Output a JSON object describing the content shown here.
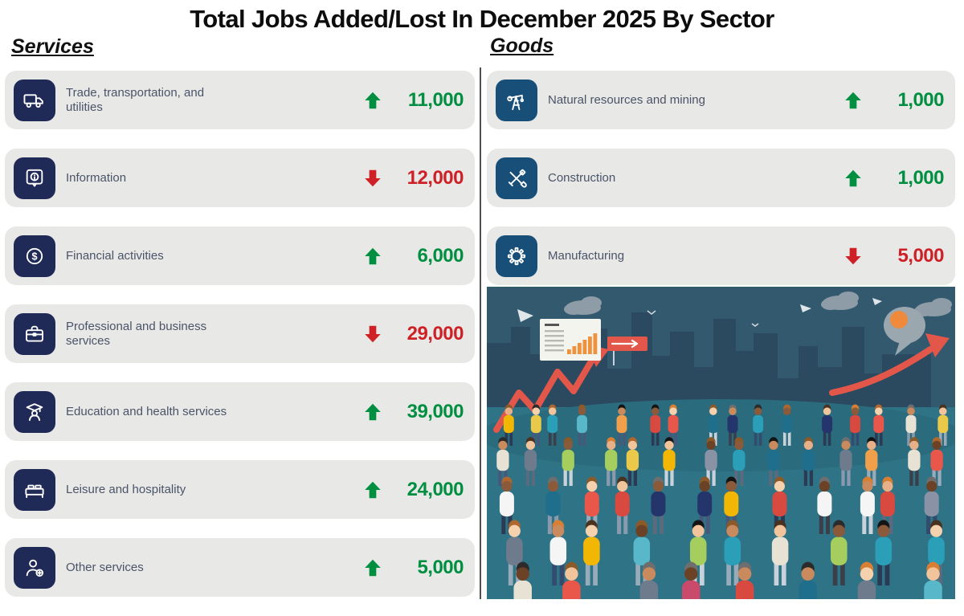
{
  "title": "Total Jobs Added/Lost In December 2025 By Sector",
  "colors": {
    "up": "#008e40",
    "down": "#cd2127",
    "row_bg": "#e8e8e6",
    "services_tile": "#202a57",
    "goods_tile": "#174f79",
    "label_text": "#4a5468"
  },
  "services": {
    "heading": "Services",
    "items": [
      {
        "label": "Trade, transportation, and utilities",
        "icon": "truck-icon",
        "direction": "up",
        "value": "11,000"
      },
      {
        "label": "Information",
        "icon": "info-bubble-icon",
        "direction": "down",
        "value": "12,000"
      },
      {
        "label": "Financial activities",
        "icon": "dollar-circle-icon",
        "direction": "up",
        "value": "6,000"
      },
      {
        "label": "Professional and business services",
        "icon": "briefcase-icon",
        "direction": "down",
        "value": "29,000"
      },
      {
        "label": "Education and health services",
        "icon": "graduate-icon",
        "direction": "up",
        "value": "39,000"
      },
      {
        "label": "Leisure and hospitality",
        "icon": "bed-icon",
        "direction": "up",
        "value": "24,000"
      },
      {
        "label": "Other services",
        "icon": "person-plus-icon",
        "direction": "up",
        "value": "5,000"
      }
    ]
  },
  "goods": {
    "heading": "Goods",
    "items": [
      {
        "label": "Natural resources and mining",
        "icon": "oil-derrick-icon",
        "direction": "up",
        "value": "1,000"
      },
      {
        "label": "Construction",
        "icon": "crossed-tools-icon",
        "direction": "up",
        "value": "1,000"
      },
      {
        "label": "Manufacturing",
        "icon": "gear-icon",
        "direction": "down",
        "value": "5,000"
      }
    ]
  },
  "chart_data": {
    "type": "table",
    "title": "Total Jobs Added/Lost In December 2025 By Sector",
    "groups": [
      {
        "name": "Services",
        "categories": [
          "Trade, transportation, and utilities",
          "Information",
          "Financial activities",
          "Professional and business services",
          "Education and health services",
          "Leisure and hospitality",
          "Other services"
        ],
        "values": [
          11000,
          -12000,
          6000,
          -29000,
          39000,
          24000,
          5000
        ]
      },
      {
        "name": "Goods",
        "categories": [
          "Natural resources and mining",
          "Construction",
          "Manufacturing"
        ],
        "values": [
          1000,
          1000,
          -5000
        ]
      }
    ]
  },
  "illustration": {
    "sky": "#33596e",
    "ground": "#2e7386",
    "skyline": "#2c4a5f",
    "cloud": "#8d9ca6",
    "accent_red": "#e2574a",
    "card_bg": "#f4f4ef",
    "card_bar": "#f0913c",
    "balloon": "#9aa7af",
    "balloon_dot": "#ef8a3c",
    "shirts": [
      "#e8574a",
      "#d84a3f",
      "#f0a04a",
      "#e9c84a",
      "#58b7c8",
      "#2b9eb8",
      "#1f6e8c",
      "#24356b",
      "#e8e2d4",
      "#f5f5f5",
      "#8a93a6",
      "#a6ce5e",
      "#f2b705",
      "#c94a6a",
      "#6d7b8c"
    ],
    "pants": [
      "#2b3a55",
      "#47597a",
      "#8a99ad",
      "#c9d2da",
      "#5b6b7d",
      "#324b6e",
      "#99aab8",
      "#3a3f4a"
    ],
    "skins": [
      "#f2c49b",
      "#e8b088",
      "#c98a5e",
      "#8a5a3b",
      "#6b4226",
      "#f5d1ae"
    ],
    "hairs": [
      "#2b2b2b",
      "#4a3220",
      "#8a5a2b",
      "#d87f33",
      "#6e6e6e",
      "#141414",
      "#b0672f"
    ]
  }
}
